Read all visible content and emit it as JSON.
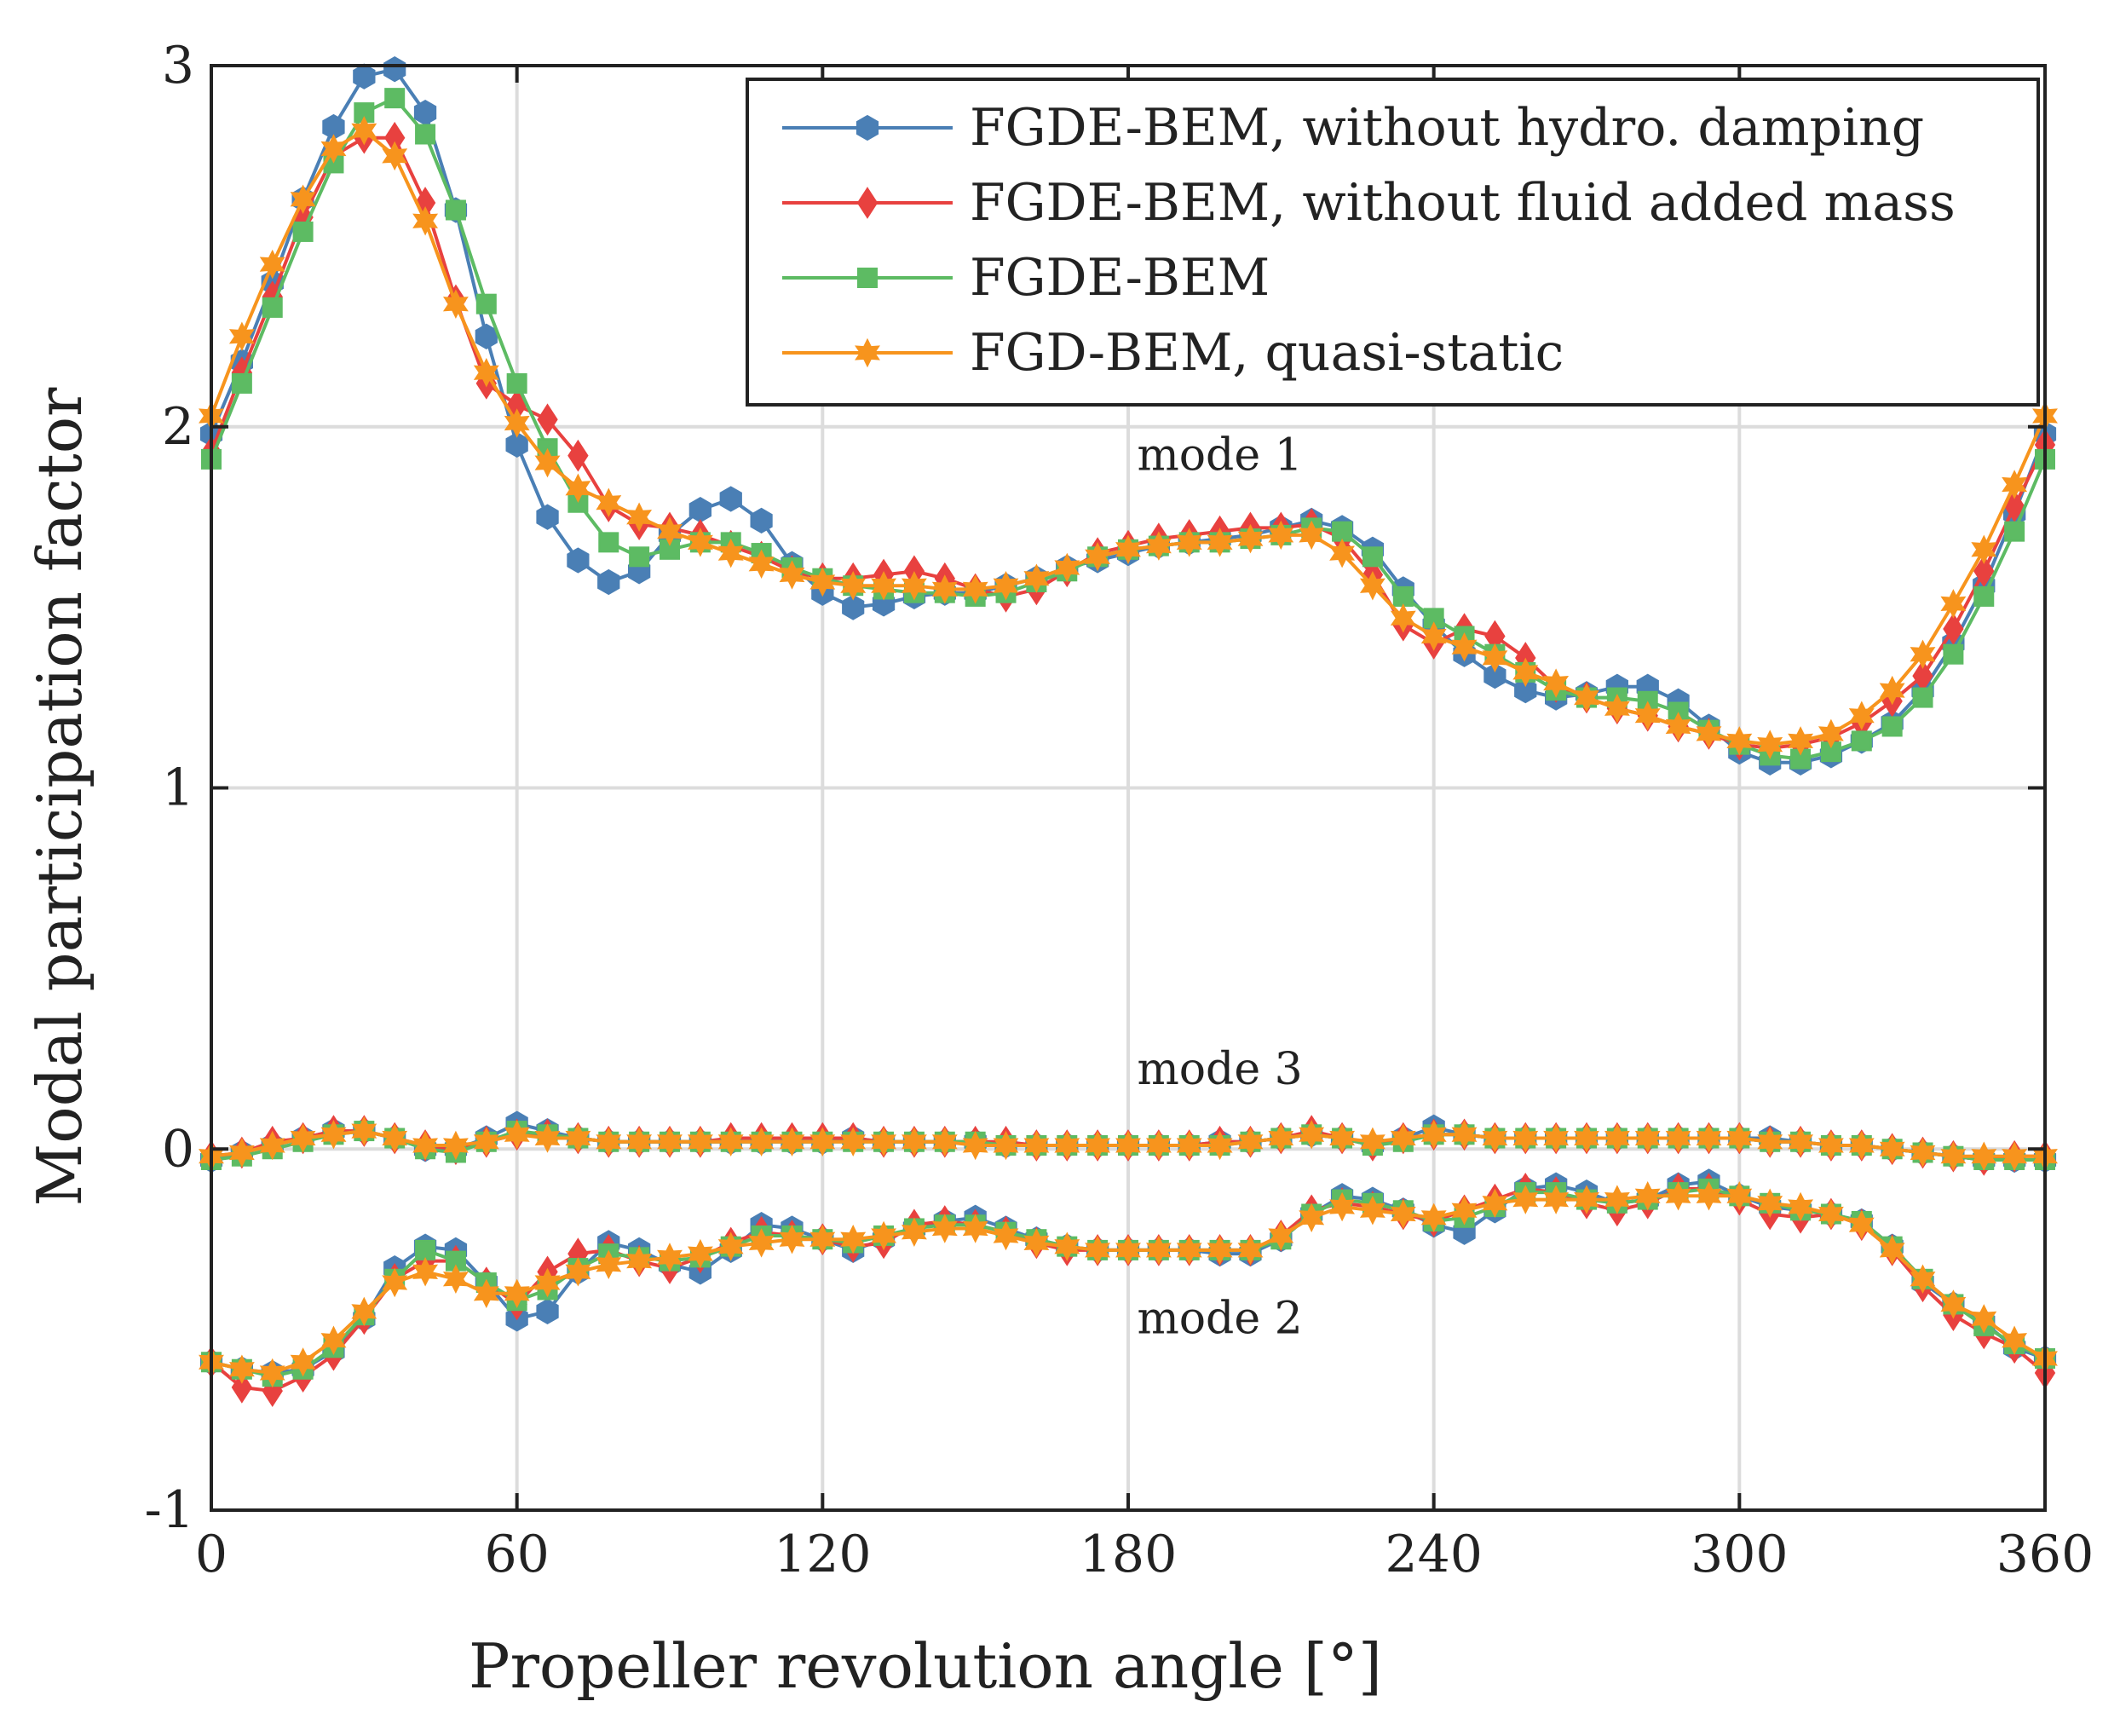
{
  "chart_data": {
    "type": "line",
    "xlabel": "Propeller revolution angle [°]",
    "ylabel": "Modal participation factor",
    "xlim": [
      0,
      360
    ],
    "ylim": [
      -1,
      3
    ],
    "xticks": [
      0,
      60,
      120,
      180,
      240,
      300,
      360
    ],
    "xtick_labels": [
      "0",
      "60",
      "120",
      "180",
      "240",
      "300",
      "360"
    ],
    "yticks": [
      -1,
      0,
      1,
      2,
      3
    ],
    "ytick_labels": [
      "-1",
      "0",
      "1",
      "2",
      "3"
    ],
    "grid": true,
    "legend_position": "top-right",
    "x": [
      0,
      6,
      12,
      18,
      24,
      30,
      36,
      42,
      48,
      54,
      60,
      66,
      72,
      78,
      84,
      90,
      96,
      102,
      108,
      114,
      120,
      126,
      132,
      138,
      144,
      150,
      156,
      162,
      168,
      174,
      180,
      186,
      192,
      198,
      204,
      210,
      216,
      222,
      228,
      234,
      240,
      246,
      252,
      258,
      264,
      270,
      276,
      282,
      288,
      294,
      300,
      306,
      312,
      318,
      324,
      330,
      336,
      342,
      348,
      354,
      360
    ],
    "annotations": [
      {
        "text": "mode 1",
        "x": 198,
        "y": 1.88
      },
      {
        "text": "mode 3",
        "x": 198,
        "y": 0.18
      },
      {
        "text": "mode 2",
        "x": 198,
        "y": -0.51
      }
    ],
    "series": [
      {
        "name": "FGDE-BEM, without hydro. damping",
        "color": "#4A7FB5",
        "marker": "hexagon",
        "modes": {
          "mode 1": [
            1.98,
            2.18,
            2.4,
            2.63,
            2.83,
            2.97,
            2.99,
            2.87,
            2.6,
            2.25,
            1.95,
            1.75,
            1.63,
            1.57,
            1.6,
            1.7,
            1.77,
            1.8,
            1.74,
            1.62,
            1.54,
            1.5,
            1.51,
            1.53,
            1.54,
            1.54,
            1.56,
            1.58,
            1.61,
            1.63,
            1.65,
            1.67,
            1.68,
            1.69,
            1.7,
            1.72,
            1.74,
            1.72,
            1.66,
            1.55,
            1.45,
            1.37,
            1.31,
            1.27,
            1.25,
            1.26,
            1.28,
            1.28,
            1.24,
            1.17,
            1.1,
            1.07,
            1.07,
            1.09,
            1.13,
            1.18,
            1.27,
            1.4,
            1.56,
            1.76,
            1.98
          ],
          "mode 2": [
            -0.59,
            -0.61,
            -0.62,
            -0.61,
            -0.56,
            -0.47,
            -0.33,
            -0.27,
            -0.28,
            -0.37,
            -0.47,
            -0.45,
            -0.34,
            -0.26,
            -0.28,
            -0.32,
            -0.34,
            -0.28,
            -0.21,
            -0.22,
            -0.25,
            -0.28,
            -0.25,
            -0.22,
            -0.2,
            -0.19,
            -0.22,
            -0.25,
            -0.27,
            -0.28,
            -0.28,
            -0.28,
            -0.28,
            -0.29,
            -0.29,
            -0.25,
            -0.18,
            -0.13,
            -0.14,
            -0.17,
            -0.21,
            -0.23,
            -0.17,
            -0.11,
            -0.1,
            -0.12,
            -0.15,
            -0.14,
            -0.1,
            -0.09,
            -0.13,
            -0.16,
            -0.17,
            -0.18,
            -0.2,
            -0.27,
            -0.37,
            -0.43,
            -0.48,
            -0.55,
            -0.58
          ],
          "mode 3": [
            -0.03,
            -0.01,
            0.01,
            0.03,
            0.05,
            0.05,
            0.03,
            0.0,
            0.0,
            0.03,
            0.07,
            0.05,
            0.03,
            0.02,
            0.02,
            0.02,
            0.02,
            0.02,
            0.02,
            0.02,
            0.02,
            0.03,
            0.02,
            0.02,
            0.02,
            0.02,
            0.01,
            0.01,
            0.01,
            0.01,
            0.01,
            0.01,
            0.01,
            0.02,
            0.02,
            0.03,
            0.04,
            0.03,
            0.01,
            0.03,
            0.06,
            0.04,
            0.03,
            0.03,
            0.03,
            0.03,
            0.03,
            0.03,
            0.03,
            0.03,
            0.03,
            0.03,
            0.02,
            0.01,
            0.01,
            0.0,
            -0.01,
            -0.02,
            -0.03,
            -0.03,
            -0.03
          ]
        }
      },
      {
        "name": "FGDE-BEM, without fluid added mass",
        "color": "#E8413F",
        "marker": "diamond",
        "modes": {
          "mode 1": [
            1.93,
            2.15,
            2.36,
            2.58,
            2.75,
            2.8,
            2.8,
            2.62,
            2.35,
            2.12,
            2.06,
            2.02,
            1.92,
            1.78,
            1.73,
            1.72,
            1.7,
            1.67,
            1.64,
            1.6,
            1.58,
            1.58,
            1.59,
            1.6,
            1.58,
            1.55,
            1.53,
            1.55,
            1.6,
            1.65,
            1.67,
            1.69,
            1.7,
            1.71,
            1.72,
            1.72,
            1.73,
            1.69,
            1.59,
            1.45,
            1.4,
            1.44,
            1.42,
            1.36,
            1.28,
            1.25,
            1.22,
            1.2,
            1.17,
            1.15,
            1.12,
            1.11,
            1.12,
            1.14,
            1.18,
            1.24,
            1.31,
            1.44,
            1.6,
            1.78,
            1.95
          ],
          "mode 2": [
            -0.59,
            -0.66,
            -0.67,
            -0.63,
            -0.57,
            -0.47,
            -0.36,
            -0.31,
            -0.31,
            -0.37,
            -0.43,
            -0.34,
            -0.29,
            -0.28,
            -0.31,
            -0.33,
            -0.3,
            -0.26,
            -0.23,
            -0.24,
            -0.25,
            -0.27,
            -0.26,
            -0.21,
            -0.2,
            -0.21,
            -0.23,
            -0.26,
            -0.28,
            -0.28,
            -0.28,
            -0.28,
            -0.28,
            -0.28,
            -0.28,
            -0.24,
            -0.17,
            -0.15,
            -0.16,
            -0.18,
            -0.2,
            -0.17,
            -0.14,
            -0.11,
            -0.12,
            -0.15,
            -0.17,
            -0.15,
            -0.11,
            -0.11,
            -0.14,
            -0.18,
            -0.19,
            -0.18,
            -0.21,
            -0.28,
            -0.38,
            -0.46,
            -0.51,
            -0.55,
            -0.62
          ],
          "mode 3": [
            -0.02,
            -0.01,
            0.02,
            0.03,
            0.05,
            0.05,
            0.03,
            0.01,
            0.0,
            0.02,
            0.04,
            0.04,
            0.03,
            0.02,
            0.02,
            0.02,
            0.02,
            0.03,
            0.03,
            0.03,
            0.03,
            0.03,
            0.02,
            0.02,
            0.02,
            0.02,
            0.02,
            0.01,
            0.01,
            0.01,
            0.01,
            0.01,
            0.01,
            0.02,
            0.02,
            0.03,
            0.05,
            0.03,
            0.01,
            0.03,
            0.04,
            0.04,
            0.03,
            0.03,
            0.03,
            0.03,
            0.03,
            0.03,
            0.03,
            0.03,
            0.03,
            0.02,
            0.02,
            0.01,
            0.01,
            0.0,
            -0.01,
            -0.02,
            -0.03,
            -0.02,
            -0.02
          ]
        }
      },
      {
        "name": "FGDE-BEM",
        "color": "#5DBB63",
        "marker": "square",
        "modes": {
          "mode 1": [
            1.91,
            2.12,
            2.33,
            2.54,
            2.73,
            2.87,
            2.91,
            2.81,
            2.6,
            2.34,
            2.12,
            1.94,
            1.79,
            1.68,
            1.64,
            1.66,
            1.68,
            1.68,
            1.65,
            1.61,
            1.58,
            1.56,
            1.55,
            1.54,
            1.54,
            1.53,
            1.54,
            1.57,
            1.6,
            1.64,
            1.66,
            1.67,
            1.68,
            1.68,
            1.69,
            1.7,
            1.72,
            1.71,
            1.64,
            1.53,
            1.47,
            1.42,
            1.37,
            1.32,
            1.27,
            1.25,
            1.25,
            1.24,
            1.21,
            1.16,
            1.12,
            1.09,
            1.08,
            1.1,
            1.13,
            1.17,
            1.25,
            1.37,
            1.53,
            1.71,
            1.91
          ],
          "mode 2": [
            -0.59,
            -0.61,
            -0.63,
            -0.61,
            -0.55,
            -0.46,
            -0.36,
            -0.28,
            -0.31,
            -0.37,
            -0.42,
            -0.39,
            -0.33,
            -0.29,
            -0.3,
            -0.31,
            -0.3,
            -0.27,
            -0.24,
            -0.24,
            -0.25,
            -0.26,
            -0.24,
            -0.22,
            -0.21,
            -0.21,
            -0.23,
            -0.25,
            -0.27,
            -0.28,
            -0.28,
            -0.28,
            -0.28,
            -0.28,
            -0.28,
            -0.25,
            -0.18,
            -0.14,
            -0.15,
            -0.17,
            -0.2,
            -0.19,
            -0.16,
            -0.12,
            -0.12,
            -0.14,
            -0.15,
            -0.14,
            -0.12,
            -0.11,
            -0.13,
            -0.15,
            -0.17,
            -0.18,
            -0.2,
            -0.27,
            -0.36,
            -0.43,
            -0.49,
            -0.54,
            -0.58
          ],
          "mode 3": [
            -0.03,
            -0.02,
            0.0,
            0.02,
            0.04,
            0.05,
            0.03,
            0.0,
            -0.01,
            0.02,
            0.05,
            0.04,
            0.03,
            0.02,
            0.02,
            0.02,
            0.02,
            0.02,
            0.02,
            0.02,
            0.02,
            0.02,
            0.02,
            0.02,
            0.02,
            0.02,
            0.01,
            0.01,
            0.01,
            0.01,
            0.01,
            0.01,
            0.01,
            0.01,
            0.02,
            0.03,
            0.04,
            0.03,
            0.01,
            0.02,
            0.04,
            0.04,
            0.03,
            0.03,
            0.03,
            0.03,
            0.03,
            0.03,
            0.03,
            0.03,
            0.03,
            0.02,
            0.02,
            0.01,
            0.01,
            0.0,
            -0.01,
            -0.02,
            -0.03,
            -0.03,
            -0.03
          ]
        }
      },
      {
        "name": "FGD-BEM, quasi-static",
        "color": "#F7941D",
        "marker": "star",
        "modes": {
          "mode 1": [
            2.03,
            2.25,
            2.45,
            2.63,
            2.77,
            2.82,
            2.75,
            2.57,
            2.34,
            2.15,
            2.01,
            1.9,
            1.83,
            1.79,
            1.75,
            1.71,
            1.68,
            1.65,
            1.62,
            1.59,
            1.57,
            1.56,
            1.56,
            1.56,
            1.55,
            1.55,
            1.56,
            1.58,
            1.61,
            1.64,
            1.66,
            1.67,
            1.68,
            1.68,
            1.69,
            1.7,
            1.7,
            1.65,
            1.56,
            1.47,
            1.42,
            1.39,
            1.36,
            1.32,
            1.29,
            1.25,
            1.22,
            1.2,
            1.17,
            1.15,
            1.13,
            1.12,
            1.13,
            1.15,
            1.2,
            1.27,
            1.37,
            1.51,
            1.66,
            1.84,
            2.03
          ],
          "mode 2": [
            -0.59,
            -0.61,
            -0.62,
            -0.59,
            -0.53,
            -0.45,
            -0.37,
            -0.34,
            -0.36,
            -0.4,
            -0.4,
            -0.37,
            -0.34,
            -0.32,
            -0.31,
            -0.3,
            -0.29,
            -0.27,
            -0.26,
            -0.25,
            -0.25,
            -0.25,
            -0.24,
            -0.23,
            -0.22,
            -0.22,
            -0.24,
            -0.26,
            -0.27,
            -0.28,
            -0.28,
            -0.28,
            -0.28,
            -0.28,
            -0.28,
            -0.24,
            -0.19,
            -0.16,
            -0.17,
            -0.18,
            -0.19,
            -0.17,
            -0.15,
            -0.14,
            -0.14,
            -0.14,
            -0.14,
            -0.13,
            -0.13,
            -0.13,
            -0.13,
            -0.15,
            -0.16,
            -0.18,
            -0.21,
            -0.28,
            -0.36,
            -0.43,
            -0.47,
            -0.53,
            -0.58
          ],
          "mode 3": [
            -0.02,
            -0.01,
            0.01,
            0.03,
            0.04,
            0.05,
            0.03,
            0.01,
            0.01,
            0.02,
            0.04,
            0.03,
            0.03,
            0.02,
            0.02,
            0.02,
            0.02,
            0.02,
            0.02,
            0.02,
            0.02,
            0.02,
            0.02,
            0.02,
            0.02,
            0.01,
            0.01,
            0.01,
            0.01,
            0.01,
            0.01,
            0.01,
            0.01,
            0.01,
            0.02,
            0.03,
            0.04,
            0.03,
            0.02,
            0.03,
            0.04,
            0.04,
            0.03,
            0.03,
            0.03,
            0.03,
            0.03,
            0.03,
            0.03,
            0.03,
            0.03,
            0.02,
            0.02,
            0.01,
            0.01,
            0.0,
            -0.01,
            -0.02,
            -0.02,
            -0.02,
            -0.02
          ]
        }
      }
    ]
  }
}
